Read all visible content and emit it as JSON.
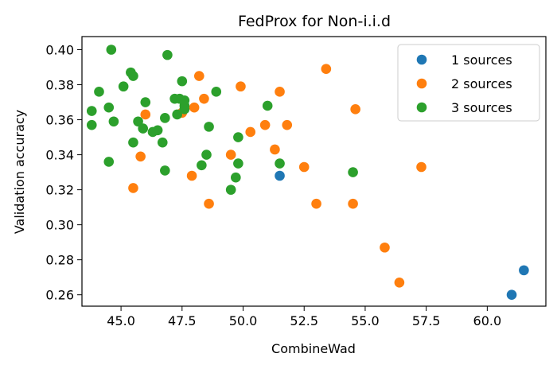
{
  "chart_data": {
    "type": "scatter",
    "title": "FedProx for Non-i.i.d",
    "xlabel": "CombineWad",
    "ylabel": "Validation accuracy",
    "xlim": [
      43.4,
      62.4
    ],
    "ylim": [
      0.2535,
      0.4075
    ],
    "xticks": [
      45.0,
      47.5,
      50.0,
      52.5,
      55.0,
      57.5,
      60.0
    ],
    "xtick_labels": [
      "45.0",
      "47.5",
      "50.0",
      "52.5",
      "55.0",
      "57.5",
      "60.0"
    ],
    "yticks": [
      0.26,
      0.28,
      0.3,
      0.32,
      0.34,
      0.36,
      0.38,
      0.4
    ],
    "ytick_labels": [
      "0.26",
      "0.28",
      "0.30",
      "0.32",
      "0.34",
      "0.36",
      "0.38",
      "0.40"
    ],
    "grid": false,
    "legend_position": "top-right",
    "series": [
      {
        "name": "1 sources",
        "color": "#1f77b4",
        "points": [
          [
            51.5,
            0.328
          ],
          [
            61.0,
            0.26
          ],
          [
            61.5,
            0.274
          ]
        ]
      },
      {
        "name": "2 sources",
        "color": "#ff7f0e",
        "points": [
          [
            45.5,
            0.321
          ],
          [
            45.8,
            0.339
          ],
          [
            46.0,
            0.363
          ],
          [
            47.5,
            0.364
          ],
          [
            47.9,
            0.328
          ],
          [
            48.0,
            0.367
          ],
          [
            48.2,
            0.385
          ],
          [
            48.4,
            0.372
          ],
          [
            48.6,
            0.312
          ],
          [
            49.5,
            0.34
          ],
          [
            49.9,
            0.379
          ],
          [
            50.3,
            0.353
          ],
          [
            50.9,
            0.357
          ],
          [
            51.3,
            0.343
          ],
          [
            51.5,
            0.376
          ],
          [
            51.8,
            0.357
          ],
          [
            52.5,
            0.333
          ],
          [
            53.0,
            0.312
          ],
          [
            53.4,
            0.389
          ],
          [
            54.5,
            0.312
          ],
          [
            54.6,
            0.366
          ],
          [
            55.8,
            0.287
          ],
          [
            56.4,
            0.267
          ],
          [
            57.3,
            0.333
          ]
        ]
      },
      {
        "name": "3 sources",
        "color": "#2ca02c",
        "points": [
          [
            43.8,
            0.365
          ],
          [
            43.8,
            0.357
          ],
          [
            44.1,
            0.376
          ],
          [
            44.5,
            0.367
          ],
          [
            44.5,
            0.336
          ],
          [
            44.6,
            0.4
          ],
          [
            44.7,
            0.359
          ],
          [
            45.1,
            0.379
          ],
          [
            45.4,
            0.387
          ],
          [
            45.5,
            0.385
          ],
          [
            45.5,
            0.347
          ],
          [
            45.7,
            0.359
          ],
          [
            45.9,
            0.355
          ],
          [
            46.0,
            0.37
          ],
          [
            46.3,
            0.353
          ],
          [
            46.5,
            0.354
          ],
          [
            46.7,
            0.347
          ],
          [
            46.8,
            0.361
          ],
          [
            46.8,
            0.331
          ],
          [
            46.9,
            0.397
          ],
          [
            47.2,
            0.372
          ],
          [
            47.3,
            0.363
          ],
          [
            47.4,
            0.372
          ],
          [
            47.5,
            0.382
          ],
          [
            47.6,
            0.368
          ],
          [
            47.6,
            0.371
          ],
          [
            47.6,
            0.366
          ],
          [
            48.3,
            0.334
          ],
          [
            48.5,
            0.34
          ],
          [
            48.6,
            0.356
          ],
          [
            48.9,
            0.376
          ],
          [
            49.5,
            0.32
          ],
          [
            49.7,
            0.327
          ],
          [
            49.8,
            0.335
          ],
          [
            49.8,
            0.35
          ],
          [
            51.0,
            0.368
          ],
          [
            51.5,
            0.335
          ],
          [
            54.5,
            0.33
          ]
        ]
      }
    ]
  }
}
